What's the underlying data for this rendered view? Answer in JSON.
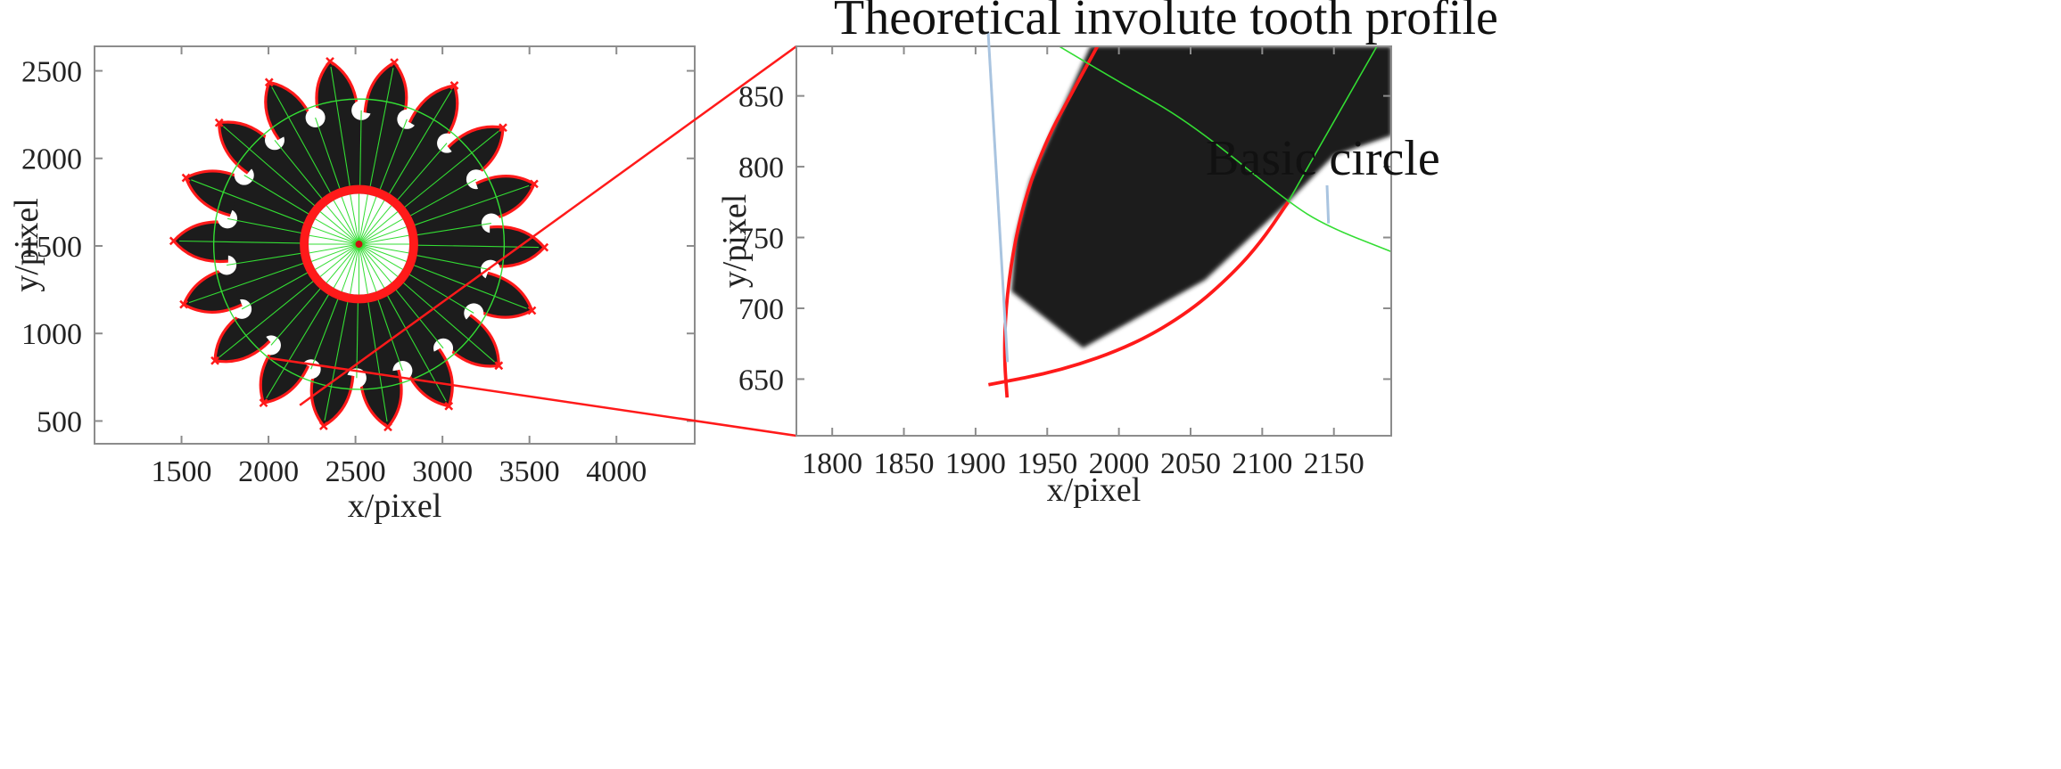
{
  "chart_data": [
    {
      "type": "scatter",
      "title": "",
      "xlabel": "x/pixel",
      "ylabel": "y/pixel",
      "xlim": [
        1000,
        4450
      ],
      "ylim": [
        2640,
        370
      ],
      "y_inverted": true,
      "xticks": [
        1500,
        2000,
        2500,
        3000,
        3500,
        4000
      ],
      "yticks": [
        500,
        1000,
        1500,
        2000,
        2500
      ],
      "gear": {
        "center": [
          2520,
          1510
        ],
        "teeth": 18,
        "tooth_tip_radius": 1065,
        "basic_circle_radius": 835,
        "root_radius": 770,
        "hub_outer_radius": 330,
        "hub_inner_radius": 300,
        "first_tooth_angle_deg": 261,
        "fill_color": "#1c1c1c",
        "profile_color": "#ff1a1a",
        "construction_color": "#33dd33"
      },
      "zoom_box": {
        "x": [
          1850,
          2180
        ],
        "y": [
          590,
          900
        ]
      }
    },
    {
      "type": "line",
      "title": "",
      "xlabel": "x/pixel",
      "ylabel": "y/pixel",
      "xlim": [
        1775,
        2190
      ],
      "ylim": [
        885,
        610
      ],
      "y_inverted": true,
      "xticks": [
        1800,
        1850,
        1900,
        1950,
        2000,
        2050,
        2100,
        2150
      ],
      "yticks": [
        650,
        700,
        750,
        800,
        850
      ],
      "series": [
        {
          "role": "theoretical-involute-profile",
          "color": "#ff1a1a",
          "x": [
            1909,
            1960,
            2010,
            2050,
            2080,
            2100,
            2118
          ],
          "y": [
            646,
            656,
            674,
            698,
            725,
            748,
            775
          ]
        },
        {
          "role": "profile-flank",
          "color": "#ff1a1a",
          "x": [
            1922,
            1920,
            1921,
            1926,
            1935,
            1950,
            1966,
            1985
          ],
          "y": [
            637,
            665,
            700,
            740,
            780,
            820,
            850,
            885
          ]
        },
        {
          "role": "basic-circle",
          "color": "#33dd33",
          "x": [
            1955,
            2000,
            2050,
            2118,
            2145,
            2190
          ],
          "y": [
            887,
            860,
            831,
            775,
            758,
            740
          ]
        },
        {
          "role": "radial-line",
          "color": "#33dd33",
          "x": [
            2118,
            2150,
            2180
          ],
          "y": [
            775,
            832,
            885
          ]
        }
      ],
      "tooth_region": {
        "x": [
          1925,
          1975,
          2060,
          2118,
          2150,
          2190,
          2190,
          1980,
          1960,
          1938,
          1928
        ],
        "y": [
          712,
          672,
          720,
          775,
          808,
          822,
          885,
          885,
          840,
          790,
          750
        ],
        "color": "#1c1c1c"
      },
      "annotations": [
        {
          "text": "Theoretical involute tooth profile",
          "point": [
            1921,
            662
          ]
        },
        {
          "text": "Basic circle",
          "point": [
            2145,
            760
          ]
        }
      ]
    }
  ],
  "colors": {
    "frame": "#8c8c8c",
    "connector": "#ff1a1a",
    "leader": "#a9c4e0"
  }
}
